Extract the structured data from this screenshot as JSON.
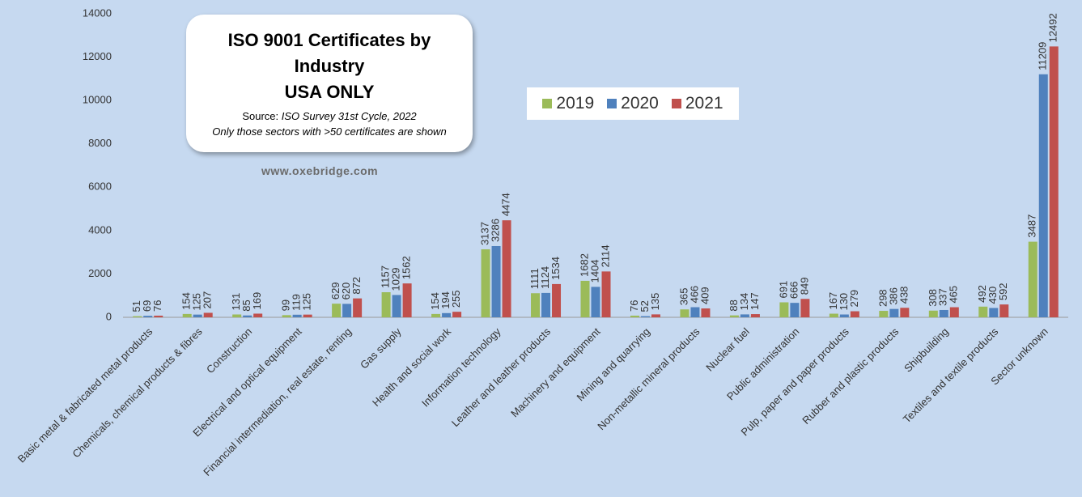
{
  "chart_data": {
    "type": "bar",
    "title": "ISO 9001 Certificates by Industry",
    "subtitle": "USA ONLY",
    "source_label": "Source:",
    "source": "ISO Survey 31st Cycle, 2022",
    "note": "Only those sectors with >50 certificates are shown",
    "watermark": "www.oxebridge.com",
    "categories": [
      "Basic metal & fabricated metal products",
      "Chemicals, chemical products & fibres",
      "Construction",
      "Electrical and optical equipment",
      "Financial intermediation, real estate, renting",
      "Gas supply",
      "Health and social work",
      "Information technology",
      "Leather and leather products",
      "Machinery and equipment",
      "Mining and quarrying",
      "Non-metallic mineral products",
      "Nuclear fuel",
      "Public administration",
      "Pulp, paper and paper products",
      "Rubber and plastic products",
      "Shipbuilding",
      "Textiles and textile products",
      "Sector unknown"
    ],
    "series": [
      {
        "name": "2019",
        "color": "#9bbb59",
        "values": [
          51,
          154,
          131,
          99,
          629,
          1157,
          154,
          3137,
          1111,
          1682,
          76,
          365,
          88,
          691,
          167,
          298,
          308,
          492,
          3487
        ]
      },
      {
        "name": "2020",
        "color": "#4f81bd",
        "values": [
          69,
          125,
          85,
          119,
          620,
          1029,
          194,
          3286,
          1124,
          1404,
          52,
          466,
          134,
          666,
          130,
          386,
          337,
          430,
          11209
        ]
      },
      {
        "name": "2021",
        "color": "#c0504d",
        "values": [
          76,
          207,
          169,
          125,
          872,
          1562,
          255,
          4474,
          1534,
          2114,
          135,
          409,
          147,
          849,
          279,
          438,
          465,
          592,
          12492
        ]
      }
    ],
    "ylim": [
      0,
      14000
    ],
    "yticks": [
      0,
      2000,
      4000,
      6000,
      8000,
      10000,
      12000,
      14000
    ],
    "grid": false,
    "legend": "top"
  }
}
